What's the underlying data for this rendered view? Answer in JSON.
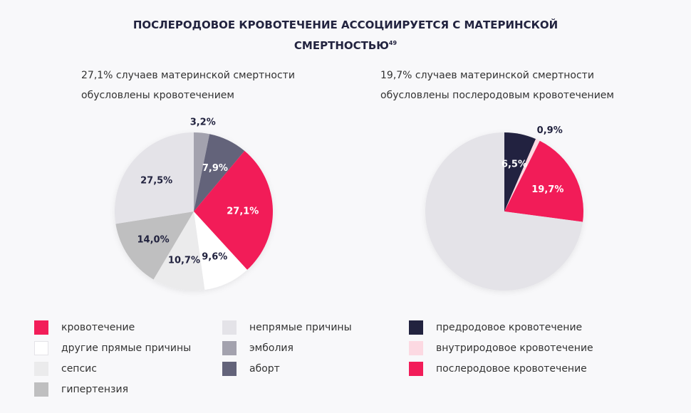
{
  "title": "ПОСЛЕРОДОВОЕ КРОВОТЕЧЕНИЕ АССОЦИИРУЕТСЯ С МАТЕРИНСКОЙ",
  "title_line2": "СМЕРТНОСТЬЮ",
  "title_sup": "49",
  "chart_data": [
    {
      "type": "pie",
      "subtitle_line1": "27,1% случаев материнской смертности",
      "subtitle_line2": "обусловлены кровотечением",
      "slices": [
        {
          "name": "эмболия",
          "value": 3.2,
          "label": "3,2%",
          "color": "#a3a2ae",
          "label_color": "#22233f"
        },
        {
          "name": "аборт",
          "value": 7.9,
          "label": "7,9%",
          "color": "#63637a",
          "label_color": "#ffffff"
        },
        {
          "name": "кровотечение",
          "value": 27.1,
          "label": "27,1%",
          "color": "#f21d59",
          "label_color": "#ffffff"
        },
        {
          "name": "другие прямые причины",
          "value": 9.6,
          "label": "9,6%",
          "color": "#ffffff",
          "label_color": "#22233f"
        },
        {
          "name": "сепсис",
          "value": 10.7,
          "label": "10,7%",
          "color": "#ebebec",
          "label_color": "#22233f"
        },
        {
          "name": "гипертензия",
          "value": 14.0,
          "label": "14,0%",
          "color": "#bfbfc0",
          "label_color": "#22233f"
        },
        {
          "name": "непрямые причины",
          "value": 27.5,
          "label": "27,5%",
          "color": "#e4e3e8",
          "label_color": "#22233f"
        }
      ]
    },
    {
      "type": "pie",
      "subtitle_line1": "19,7% случаев материнской смертности",
      "subtitle_line2": "обусловлены послеродовым кровотечением",
      "slices": [
        {
          "name": "предродовое кровотечение",
          "value": 6.5,
          "label": "6,5%",
          "color": "#22233f",
          "label_color": "#ffffff"
        },
        {
          "name": "внутриродовое кровотечение",
          "value": 0.9,
          "label": "0,9%",
          "color": "#fcd9e2",
          "label_color": "#22233f"
        },
        {
          "name": "послеродовое кровотечение",
          "value": 19.7,
          "label": "19,7%",
          "color": "#f21d59",
          "label_color": "#ffffff"
        },
        {
          "name": "",
          "value": 72.9,
          "label": "",
          "color": "#e4e3e8",
          "label_color": "#22233f"
        }
      ]
    }
  ],
  "legend": [
    {
      "label": "кровотечение",
      "color": "#f21d59"
    },
    {
      "label": "другие прямые причины",
      "color": "#ffffff"
    },
    {
      "label": "сепсис",
      "color": "#ebebec"
    },
    {
      "label": "гипертензия",
      "color": "#bfbfc0"
    },
    {
      "label": "непрямые причины",
      "color": "#e4e3e8"
    },
    {
      "label": "эмболия",
      "color": "#a3a2ae"
    },
    {
      "label": "аборт",
      "color": "#63637a"
    },
    {
      "label": "предродовое кровотечение",
      "color": "#22233f"
    },
    {
      "label": "внутриродовое кровотечение",
      "color": "#fcd9e2"
    },
    {
      "label": "послеродовое кровотечение",
      "color": "#f21d59"
    }
  ]
}
